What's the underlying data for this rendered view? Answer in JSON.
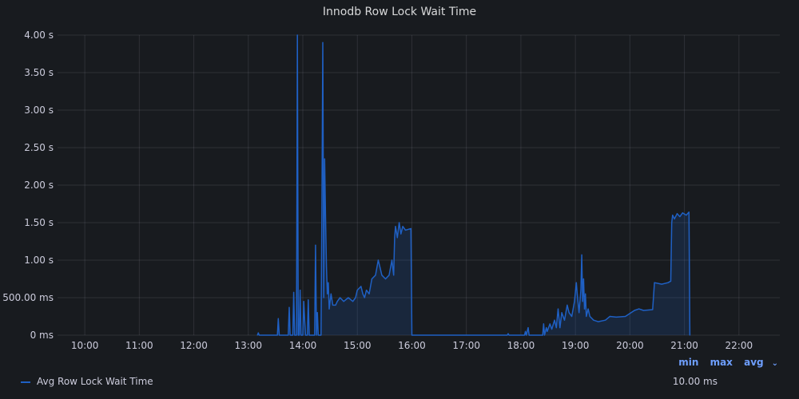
{
  "panel": {
    "title": "Innodb Row Lock Wait Time"
  },
  "legend": {
    "headers": {
      "min": "min",
      "max": "max",
      "avg": "avg"
    },
    "series_name": "Avg Row Lock Wait Time",
    "series_avg": "10.00 ms",
    "color": "#1f60c4"
  },
  "chart_data": {
    "type": "area",
    "title": "Innodb Row Lock Wait Time",
    "xlabel": "",
    "ylabel": "",
    "grid": true,
    "legend_position": "bottom-left",
    "xlim": [
      "09:30",
      "22:45"
    ],
    "ylim": [
      0,
      4.0
    ],
    "x_ticks": [
      "10:00",
      "11:00",
      "12:00",
      "13:00",
      "14:00",
      "15:00",
      "16:00",
      "17:00",
      "18:00",
      "19:00",
      "20:00",
      "21:00",
      "22:00"
    ],
    "y_ticks": [
      "0 ms",
      "500.00 ms",
      "1.00 s",
      "1.50 s",
      "2.00 s",
      "2.50 s",
      "3.00 s",
      "3.50 s",
      "4.00 s"
    ],
    "series": [
      {
        "name": "Avg Row Lock Wait Time",
        "color": "#1f60c4",
        "points": [
          [
            "13:10",
            0
          ],
          [
            "13:11",
            0.03
          ],
          [
            "13:12",
            0
          ],
          [
            "13:32",
            0
          ],
          [
            "13:33",
            0.22
          ],
          [
            "13:34",
            0
          ],
          [
            "13:44",
            0
          ],
          [
            "13:45",
            0.37
          ],
          [
            "13:46",
            0
          ],
          [
            "13:49",
            0
          ],
          [
            "13:50",
            0.57
          ],
          [
            "13:51",
            0
          ],
          [
            "13:53",
            0
          ],
          [
            "13:54",
            4.0
          ],
          [
            "13:55",
            0
          ],
          [
            "13:56",
            0
          ],
          [
            "13:57",
            0.6
          ],
          [
            "13:58",
            0
          ],
          [
            "14:00",
            0
          ],
          [
            "14:01",
            0.45
          ],
          [
            "14:02",
            0.2
          ],
          [
            "14:03",
            0
          ],
          [
            "14:05",
            0
          ],
          [
            "14:06",
            0.47
          ],
          [
            "14:07",
            0
          ],
          [
            "14:13",
            0
          ],
          [
            "14:14",
            1.2
          ],
          [
            "14:15",
            0
          ],
          [
            "14:16",
            0.3
          ],
          [
            "14:17",
            0
          ],
          [
            "14:20",
            0
          ],
          [
            "14:21",
            1.7
          ],
          [
            "14:22",
            3.9
          ],
          [
            "14:23",
            0.5
          ],
          [
            "14:24",
            2.35
          ],
          [
            "14:25",
            1.6
          ],
          [
            "14:26",
            0.9
          ],
          [
            "14:27",
            0.55
          ],
          [
            "14:28",
            0.7
          ],
          [
            "14:29",
            0.35
          ],
          [
            "14:31",
            0.55
          ],
          [
            "14:33",
            0.4
          ],
          [
            "14:36",
            0.4
          ],
          [
            "14:38",
            0.45
          ],
          [
            "14:41",
            0.5
          ],
          [
            "14:45",
            0.45
          ],
          [
            "14:50",
            0.5
          ],
          [
            "14:55",
            0.45
          ],
          [
            "14:58",
            0.5
          ],
          [
            "15:00",
            0.6
          ],
          [
            "15:04",
            0.65
          ],
          [
            "15:06",
            0.55
          ],
          [
            "15:08",
            0.5
          ],
          [
            "15:10",
            0.6
          ],
          [
            "15:13",
            0.55
          ],
          [
            "15:16",
            0.75
          ],
          [
            "15:20",
            0.8
          ],
          [
            "15:23",
            1.0
          ],
          [
            "15:25",
            0.9
          ],
          [
            "15:27",
            0.8
          ],
          [
            "15:31",
            0.75
          ],
          [
            "15:35",
            0.8
          ],
          [
            "15:38",
            1.0
          ],
          [
            "15:40",
            0.8
          ],
          [
            "15:41",
            1.3
          ],
          [
            "15:42",
            1.45
          ],
          [
            "15:44",
            1.3
          ],
          [
            "15:46",
            1.5
          ],
          [
            "15:48",
            1.35
          ],
          [
            "15:50",
            1.45
          ],
          [
            "15:53",
            1.4
          ],
          [
            "15:59",
            1.42
          ],
          [
            "16:00",
            0
          ],
          [
            "17:45",
            0
          ],
          [
            "17:46",
            0.02
          ],
          [
            "17:47",
            0
          ],
          [
            "18:04",
            0
          ],
          [
            "18:05",
            0.05
          ],
          [
            "18:06",
            0
          ],
          [
            "18:08",
            0.1
          ],
          [
            "18:09",
            0
          ],
          [
            "18:24",
            0
          ],
          [
            "18:25",
            0.15
          ],
          [
            "18:26",
            0
          ],
          [
            "18:28",
            0.1
          ],
          [
            "18:29",
            0.05
          ],
          [
            "18:32",
            0.15
          ],
          [
            "18:34",
            0.08
          ],
          [
            "18:37",
            0.2
          ],
          [
            "18:39",
            0.1
          ],
          [
            "18:41",
            0.35
          ],
          [
            "18:43",
            0.1
          ],
          [
            "18:45",
            0.3
          ],
          [
            "18:48",
            0.2
          ],
          [
            "18:51",
            0.4
          ],
          [
            "18:53",
            0.3
          ],
          [
            "18:56",
            0.25
          ],
          [
            "18:59",
            0.45
          ],
          [
            "19:01",
            0.7
          ],
          [
            "19:02",
            0.55
          ],
          [
            "19:04",
            0.3
          ],
          [
            "19:06",
            0.6
          ],
          [
            "19:07",
            1.07
          ],
          [
            "19:08",
            0.45
          ],
          [
            "19:09",
            0.75
          ],
          [
            "19:10",
            0.35
          ],
          [
            "19:11",
            0.55
          ],
          [
            "19:12",
            0.25
          ],
          [
            "19:14",
            0.35
          ],
          [
            "19:16",
            0.25
          ],
          [
            "19:20",
            0.2
          ],
          [
            "19:25",
            0.18
          ],
          [
            "19:33",
            0.2
          ],
          [
            "19:38",
            0.25
          ],
          [
            "19:45",
            0.24
          ],
          [
            "19:55",
            0.25
          ],
          [
            "20:05",
            0.33
          ],
          [
            "20:10",
            0.35
          ],
          [
            "20:15",
            0.33
          ],
          [
            "20:25",
            0.34
          ],
          [
            "20:27",
            0.7
          ],
          [
            "20:35",
            0.68
          ],
          [
            "20:42",
            0.7
          ],
          [
            "20:45",
            0.72
          ],
          [
            "20:46",
            1.5
          ],
          [
            "20:47",
            1.6
          ],
          [
            "20:49",
            1.55
          ],
          [
            "20:52",
            1.62
          ],
          [
            "20:55",
            1.58
          ],
          [
            "20:58",
            1.63
          ],
          [
            "21:02",
            1.6
          ],
          [
            "21:05",
            1.64
          ],
          [
            "21:06",
            0
          ]
        ]
      }
    ]
  }
}
